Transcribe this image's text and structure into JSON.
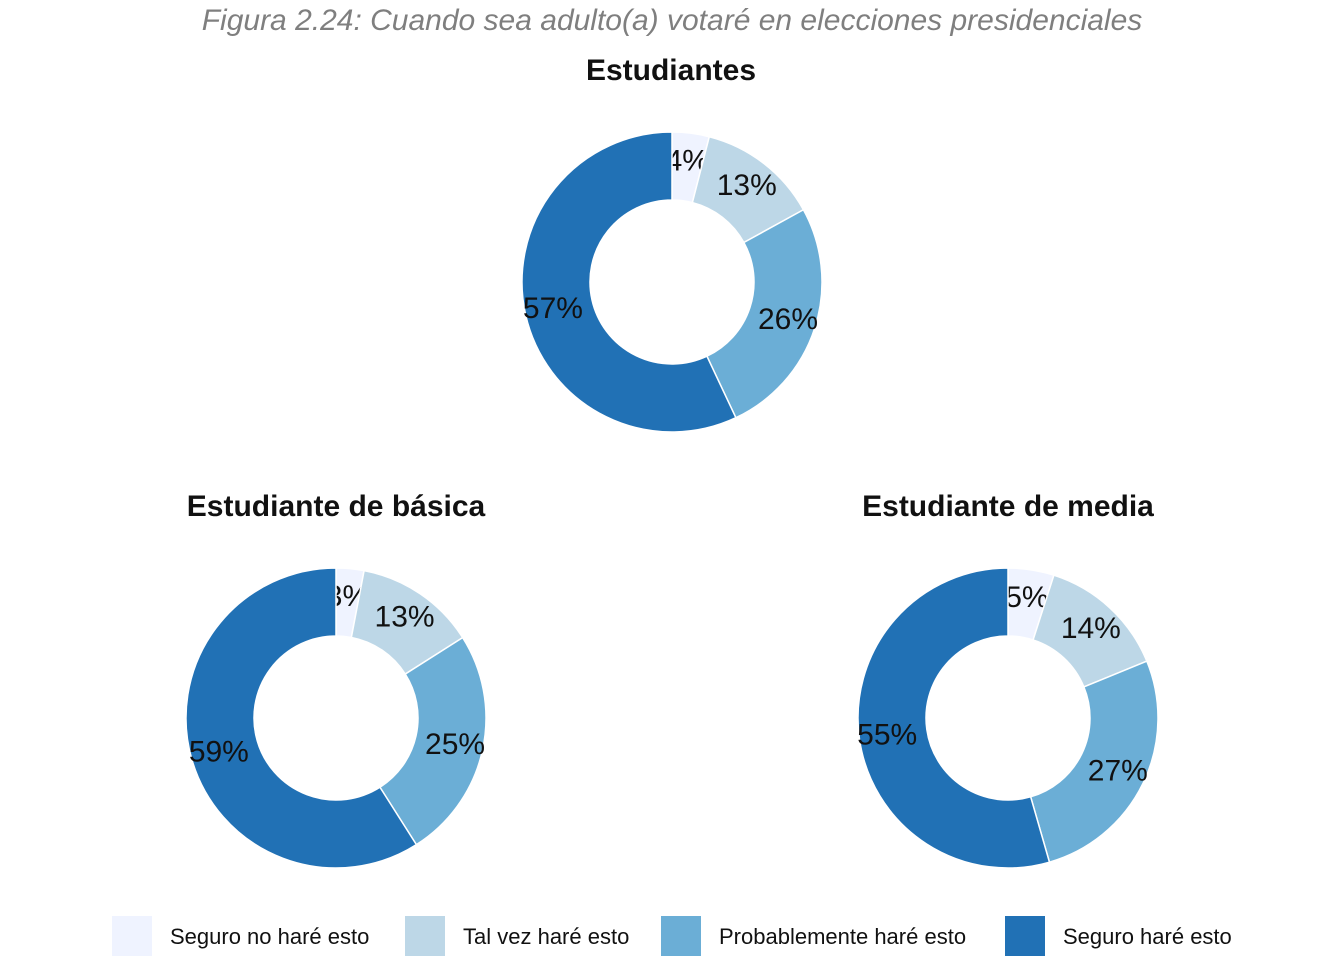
{
  "caption": "Figura 2.24: Cuando sea adulto(a) votaré en elecciones presidenciales",
  "legend": [
    {
      "label": "Seguro no haré esto",
      "color": "#eff3ff"
    },
    {
      "label": "Tal vez haré esto",
      "color": "#bdd7e7"
    },
    {
      "label": "Probablemente haré esto",
      "color": "#6baed6"
    },
    {
      "label": "Seguro haré esto",
      "color": "#2171b5"
    }
  ],
  "chart_data": [
    {
      "type": "pie",
      "title": "Estudiantes",
      "categories": [
        "Seguro no haré esto",
        "Tal vez haré esto",
        "Probablemente haré esto",
        "Seguro haré esto"
      ],
      "values": [
        4,
        13,
        26,
        57
      ],
      "labels": [
        "4%",
        "13%",
        "26%",
        "57%"
      ],
      "donut": true
    },
    {
      "type": "pie",
      "title": "Estudiante de básica",
      "categories": [
        "Seguro no haré esto",
        "Tal vez haré esto",
        "Probablemente haré esto",
        "Seguro haré esto"
      ],
      "values": [
        3,
        13,
        25,
        59
      ],
      "labels": [
        "3%",
        "13%",
        "25%",
        "59%"
      ],
      "donut": true
    },
    {
      "type": "pie",
      "title": "Estudiante de media",
      "categories": [
        "Seguro no haré esto",
        "Tal vez haré esto",
        "Probablemente haré esto",
        "Seguro haré esto"
      ],
      "values": [
        5,
        14,
        27,
        55
      ],
      "labels": [
        "5%",
        "14%",
        "27%",
        "55%"
      ],
      "donut": true
    }
  ]
}
